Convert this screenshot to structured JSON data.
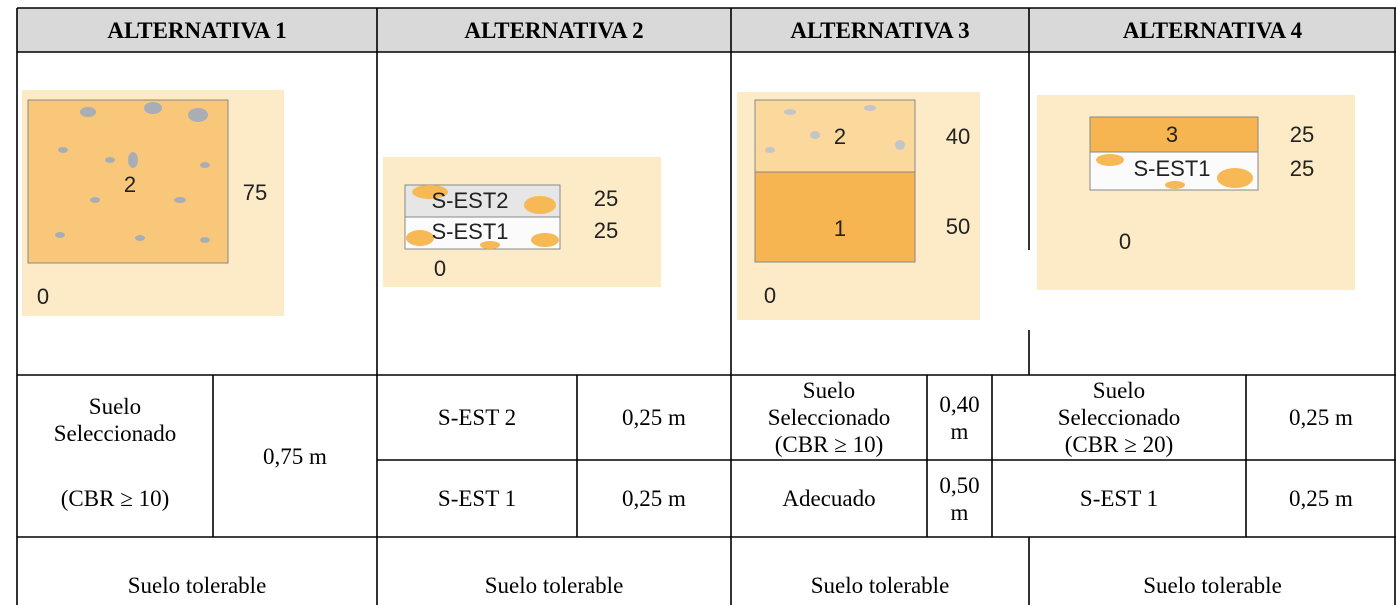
{
  "table": {
    "alternatives": [
      {
        "header": "ALTERNATIVA 1",
        "diagram": {
          "layers": [
            {
              "label": "2",
              "depth": 75
            }
          ],
          "base": 0
        },
        "layers": [
          {
            "material": "Suelo Seleccionado",
            "note": "(CBR ≥ 10)",
            "thickness": "0,75 m"
          }
        ],
        "subgrade": "Suelo tolerable"
      },
      {
        "header": "ALTERNATIVA 2",
        "diagram": {
          "layers": [
            {
              "label": "S-EST2",
              "depth": 25
            },
            {
              "label": "S-EST1",
              "depth": 25
            }
          ],
          "base": 0
        },
        "layers": [
          {
            "material": "S-EST 2",
            "thickness": "0,25 m"
          },
          {
            "material": "S-EST 1",
            "thickness": "0,25 m"
          }
        ],
        "subgrade": "Suelo tolerable"
      },
      {
        "header": "ALTERNATIVA 3",
        "diagram": {
          "layers": [
            {
              "label": "2",
              "depth": 40
            },
            {
              "label": "1",
              "depth": 50
            }
          ],
          "base": 0
        },
        "layers": [
          {
            "material": "Suelo Seleccionado (CBR ≥ 10)",
            "thickness": "0,40 m"
          },
          {
            "material": "Adecuado",
            "thickness": "0,50 m"
          }
        ],
        "subgrade": "Suelo tolerable"
      },
      {
        "header": "ALTERNATIVA 4",
        "diagram": {
          "layers": [
            {
              "label": "3",
              "depth": 25
            },
            {
              "label": "S-EST1",
              "depth": 25
            }
          ],
          "base": 0
        },
        "layers": [
          {
            "material": "Suelo Seleccionado (CBR ≥ 20)",
            "thickness": "0,25 m"
          },
          {
            "material": "S-EST 1",
            "thickness": "0,25 m"
          }
        ],
        "subgrade": "Suelo tolerable"
      }
    ]
  }
}
